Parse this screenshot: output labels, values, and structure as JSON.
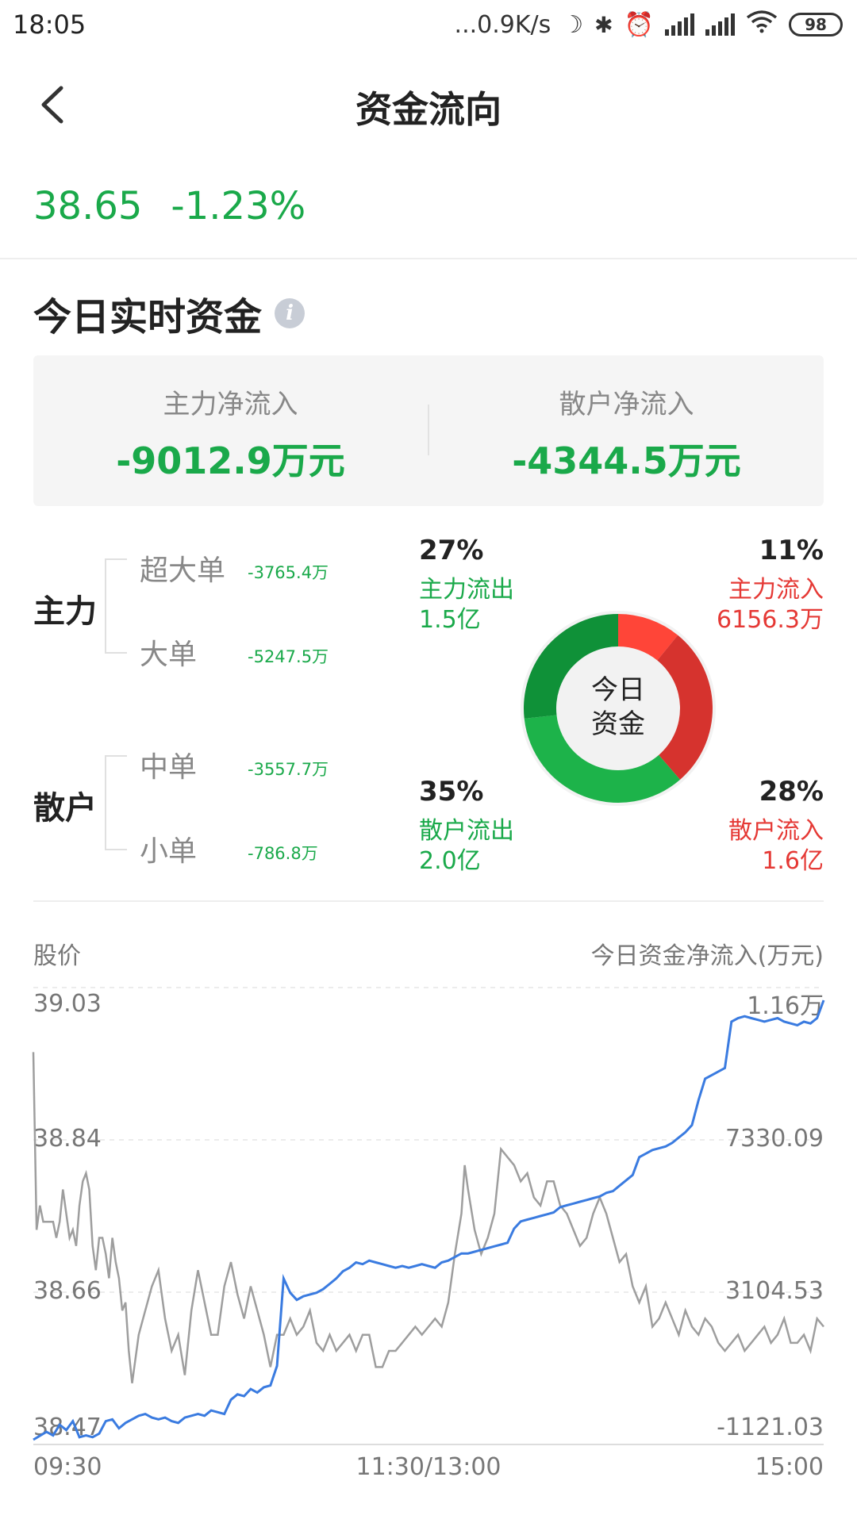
{
  "status_bar": {
    "time": "18:05",
    "network_speed": "...0.9K/s",
    "battery": "98",
    "icons": [
      "moon-icon",
      "bluetooth-icon",
      "alarm-icon",
      "signal-icon",
      "hd-signal-icon",
      "wifi-icon",
      "battery-icon"
    ]
  },
  "nav": {
    "title": "资金流向",
    "back_icon": "back-chevron-icon"
  },
  "quote": {
    "price": "38.65",
    "change_pct": "-1.23%",
    "color": "#1aa94a"
  },
  "realtime": {
    "title": "今日实时资金",
    "info_icon": "i"
  },
  "summary": {
    "main_label": "主力净流入",
    "main_value": "-9012.9万元",
    "retail_label": "散户净流入",
    "retail_value": "-4344.5万元"
  },
  "breakdown": {
    "main": {
      "label": "主力",
      "items": [
        {
          "label": "超大单",
          "value": "-3765.4万"
        },
        {
          "label": "大单",
          "value": "-5247.5万"
        }
      ]
    },
    "retail": {
      "label": "散户",
      "items": [
        {
          "label": "中单",
          "value": "-3557.7万"
        },
        {
          "label": "小单",
          "value": "-786.8万"
        }
      ]
    }
  },
  "donut": {
    "center_line1": "今日",
    "center_line2": "资金",
    "main_out": {
      "pct": "27%",
      "label": "主力流出",
      "amount": "1.5亿",
      "fraction": 0.27
    },
    "main_in": {
      "pct": "11%",
      "label": "主力流入",
      "amount": "6156.3万",
      "fraction": 0.11
    },
    "retail_out": {
      "pct": "35%",
      "label": "散户流出",
      "amount": "2.0亿",
      "fraction": 0.35
    },
    "retail_in": {
      "pct": "28%",
      "label": "散户流入",
      "amount": "1.6亿",
      "fraction": 0.28
    },
    "colors": {
      "main_in": "#ff4538",
      "retail_in": "#d6332e",
      "retail_out": "#1db34a",
      "main_out": "#0f9138"
    }
  },
  "chart_data": {
    "type": "line",
    "left_header": "股价",
    "right_header": "今日资金净流入(万元)",
    "x_ticks": [
      "09:30",
      "11:30/13:00",
      "15:00"
    ],
    "left_ticks": [
      "39.03",
      "38.84",
      "38.66",
      "38.47"
    ],
    "right_ticks": [
      "1.16万",
      "7330.09",
      "3104.53",
      "-1121.03"
    ],
    "left_ylim": [
      38.47,
      39.03
    ],
    "right_ylim": [
      -1121.03,
      11555.65
    ],
    "x_range": [
      0,
      240
    ],
    "series": [
      {
        "color": "#9e9e9e",
        "axis": "left",
        "points": [
          [
            0,
            38.95
          ],
          [
            1,
            38.73
          ],
          [
            2,
            38.76
          ],
          [
            3,
            38.74
          ],
          [
            4,
            38.74
          ],
          [
            5,
            38.74
          ],
          [
            6,
            38.74
          ],
          [
            7,
            38.72
          ],
          [
            8,
            38.74
          ],
          [
            9,
            38.78
          ],
          [
            10,
            38.75
          ],
          [
            11,
            38.72
          ],
          [
            12,
            38.73
          ],
          [
            13,
            38.71
          ],
          [
            14,
            38.76
          ],
          [
            15,
            38.79
          ],
          [
            16,
            38.8
          ],
          [
            17,
            38.78
          ],
          [
            18,
            38.71
          ],
          [
            19,
            38.68
          ],
          [
            20,
            38.72
          ],
          [
            21,
            38.72
          ],
          [
            22,
            38.7
          ],
          [
            23,
            38.67
          ],
          [
            24,
            38.72
          ],
          [
            25,
            38.69
          ],
          [
            26,
            38.67
          ],
          [
            27,
            38.63
          ],
          [
            28,
            38.64
          ],
          [
            29,
            38.58
          ],
          [
            30,
            38.54
          ],
          [
            32,
            38.6
          ],
          [
            34,
            38.63
          ],
          [
            36,
            38.66
          ],
          [
            38,
            38.68
          ],
          [
            40,
            38.62
          ],
          [
            42,
            38.58
          ],
          [
            44,
            38.6
          ],
          [
            46,
            38.55
          ],
          [
            48,
            38.63
          ],
          [
            50,
            38.68
          ],
          [
            52,
            38.64
          ],
          [
            54,
            38.6
          ],
          [
            56,
            38.6
          ],
          [
            58,
            38.66
          ],
          [
            60,
            38.69
          ],
          [
            62,
            38.65
          ],
          [
            64,
            38.62
          ],
          [
            66,
            38.66
          ],
          [
            68,
            38.63
          ],
          [
            70,
            38.6
          ],
          [
            72,
            38.56
          ],
          [
            74,
            38.6
          ],
          [
            76,
            38.6
          ],
          [
            78,
            38.62
          ],
          [
            80,
            38.6
          ],
          [
            82,
            38.61
          ],
          [
            84,
            38.63
          ],
          [
            86,
            38.59
          ],
          [
            88,
            38.58
          ],
          [
            90,
            38.6
          ],
          [
            92,
            38.58
          ],
          [
            94,
            38.59
          ],
          [
            96,
            38.6
          ],
          [
            98,
            38.58
          ],
          [
            100,
            38.6
          ],
          [
            102,
            38.6
          ],
          [
            104,
            38.56
          ],
          [
            106,
            38.56
          ],
          [
            108,
            38.58
          ],
          [
            110,
            38.58
          ],
          [
            112,
            38.59
          ],
          [
            114,
            38.6
          ],
          [
            116,
            38.61
          ],
          [
            118,
            38.6
          ],
          [
            120,
            38.61
          ],
          [
            122,
            38.62
          ],
          [
            124,
            38.61
          ],
          [
            126,
            38.64
          ],
          [
            128,
            38.7
          ],
          [
            130,
            38.75
          ],
          [
            131,
            38.81
          ],
          [
            132,
            38.78
          ],
          [
            134,
            38.73
          ],
          [
            136,
            38.7
          ],
          [
            138,
            38.72
          ],
          [
            140,
            38.75
          ],
          [
            142,
            38.83
          ],
          [
            144,
            38.82
          ],
          [
            146,
            38.81
          ],
          [
            148,
            38.79
          ],
          [
            150,
            38.8
          ],
          [
            152,
            38.77
          ],
          [
            154,
            38.76
          ],
          [
            156,
            38.79
          ],
          [
            158,
            38.79
          ],
          [
            160,
            38.76
          ],
          [
            162,
            38.75
          ],
          [
            164,
            38.73
          ],
          [
            166,
            38.71
          ],
          [
            168,
            38.72
          ],
          [
            170,
            38.75
          ],
          [
            172,
            38.77
          ],
          [
            174,
            38.75
          ],
          [
            176,
            38.72
          ],
          [
            178,
            38.69
          ],
          [
            180,
            38.7
          ],
          [
            182,
            38.66
          ],
          [
            184,
            38.64
          ],
          [
            186,
            38.66
          ],
          [
            188,
            38.61
          ],
          [
            190,
            38.62
          ],
          [
            192,
            38.64
          ],
          [
            194,
            38.62
          ],
          [
            196,
            38.6
          ],
          [
            198,
            38.63
          ],
          [
            200,
            38.61
          ],
          [
            202,
            38.6
          ],
          [
            204,
            38.62
          ],
          [
            206,
            38.61
          ],
          [
            208,
            38.59
          ],
          [
            210,
            38.58
          ],
          [
            212,
            38.59
          ],
          [
            214,
            38.6
          ],
          [
            216,
            38.58
          ],
          [
            218,
            38.59
          ],
          [
            220,
            38.6
          ],
          [
            222,
            38.61
          ],
          [
            224,
            38.59
          ],
          [
            226,
            38.6
          ],
          [
            228,
            38.62
          ],
          [
            230,
            38.59
          ],
          [
            232,
            38.59
          ],
          [
            234,
            38.6
          ],
          [
            236,
            38.58
          ],
          [
            238,
            38.62
          ],
          [
            240,
            38.61
          ]
        ]
      },
      {
        "color": "#3a7be0",
        "axis": "right",
        "points": [
          [
            0,
            -1121
          ],
          [
            4,
            -900
          ],
          [
            6,
            -1000
          ],
          [
            8,
            -700
          ],
          [
            10,
            -850
          ],
          [
            12,
            -600
          ],
          [
            14,
            -1050
          ],
          [
            16,
            -1000
          ],
          [
            18,
            -1050
          ],
          [
            20,
            -950
          ],
          [
            22,
            -600
          ],
          [
            24,
            -550
          ],
          [
            26,
            -800
          ],
          [
            28,
            -650
          ],
          [
            30,
            -550
          ],
          [
            32,
            -450
          ],
          [
            34,
            -400
          ],
          [
            36,
            -500
          ],
          [
            38,
            -550
          ],
          [
            40,
            -500
          ],
          [
            42,
            -600
          ],
          [
            44,
            -650
          ],
          [
            46,
            -500
          ],
          [
            48,
            -450
          ],
          [
            50,
            -400
          ],
          [
            52,
            -450
          ],
          [
            54,
            -300
          ],
          [
            56,
            -350
          ],
          [
            58,
            -400
          ],
          [
            60,
            0
          ],
          [
            62,
            150
          ],
          [
            64,
            100
          ],
          [
            66,
            300
          ],
          [
            68,
            200
          ],
          [
            70,
            350
          ],
          [
            72,
            400
          ],
          [
            74,
            950
          ],
          [
            76,
            3400
          ],
          [
            78,
            3000
          ],
          [
            80,
            2800
          ],
          [
            82,
            2900
          ],
          [
            84,
            2950
          ],
          [
            86,
            3000
          ],
          [
            88,
            3100
          ],
          [
            90,
            3250
          ],
          [
            92,
            3400
          ],
          [
            94,
            3600
          ],
          [
            96,
            3700
          ],
          [
            98,
            3850
          ],
          [
            100,
            3800
          ],
          [
            102,
            3900
          ],
          [
            104,
            3850
          ],
          [
            106,
            3800
          ],
          [
            108,
            3750
          ],
          [
            110,
            3700
          ],
          [
            112,
            3750
          ],
          [
            114,
            3700
          ],
          [
            116,
            3750
          ],
          [
            118,
            3800
          ],
          [
            120,
            3750
          ],
          [
            122,
            3700
          ],
          [
            124,
            3850
          ],
          [
            126,
            3900
          ],
          [
            128,
            4000
          ],
          [
            130,
            4100
          ],
          [
            132,
            4100
          ],
          [
            134,
            4150
          ],
          [
            136,
            4200
          ],
          [
            138,
            4250
          ],
          [
            140,
            4300
          ],
          [
            142,
            4350
          ],
          [
            144,
            4400
          ],
          [
            146,
            4800
          ],
          [
            148,
            5000
          ],
          [
            150,
            5050
          ],
          [
            152,
            5100
          ],
          [
            154,
            5150
          ],
          [
            156,
            5200
          ],
          [
            158,
            5250
          ],
          [
            160,
            5400
          ],
          [
            162,
            5450
          ],
          [
            164,
            5500
          ],
          [
            166,
            5550
          ],
          [
            168,
            5600
          ],
          [
            170,
            5650
          ],
          [
            172,
            5700
          ],
          [
            174,
            5800
          ],
          [
            176,
            5850
          ],
          [
            178,
            6000
          ],
          [
            180,
            6150
          ],
          [
            182,
            6300
          ],
          [
            184,
            6800
          ],
          [
            186,
            6900
          ],
          [
            188,
            7000
          ],
          [
            190,
            7050
          ],
          [
            192,
            7100
          ],
          [
            194,
            7200
          ],
          [
            196,
            7350
          ],
          [
            198,
            7500
          ],
          [
            200,
            7700
          ],
          [
            202,
            8400
          ],
          [
            204,
            9000
          ],
          [
            206,
            9100
          ],
          [
            208,
            9200
          ],
          [
            210,
            9300
          ],
          [
            212,
            10600
          ],
          [
            214,
            10700
          ],
          [
            216,
            10750
          ],
          [
            218,
            10700
          ],
          [
            220,
            10650
          ],
          [
            222,
            10600
          ],
          [
            224,
            10650
          ],
          [
            226,
            10700
          ],
          [
            228,
            10600
          ],
          [
            230,
            10550
          ],
          [
            232,
            10500
          ],
          [
            234,
            10600
          ],
          [
            236,
            10550
          ],
          [
            238,
            10700
          ],
          [
            240,
            11200
          ]
        ]
      }
    ]
  }
}
